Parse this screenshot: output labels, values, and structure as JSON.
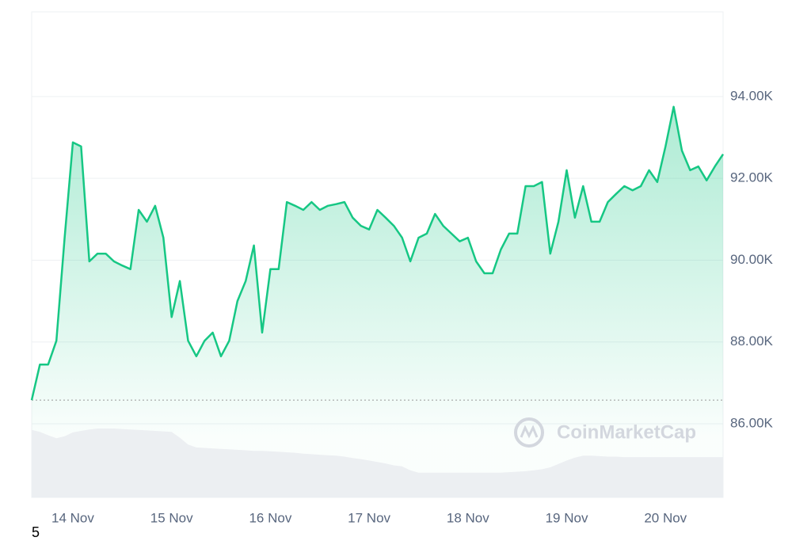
{
  "chart_data": {
    "type": "line",
    "categories": [
      null,
      null,
      null,
      null,
      null,
      "14 Nov",
      null,
      null,
      null,
      null,
      null,
      null,
      null,
      null,
      null,
      null,
      null,
      "15 Nov",
      null,
      null,
      null,
      null,
      null,
      null,
      null,
      null,
      null,
      null,
      null,
      "16 Nov",
      null,
      null,
      null,
      null,
      null,
      null,
      null,
      null,
      null,
      null,
      null,
      "17 Nov",
      null,
      null,
      null,
      null,
      null,
      null,
      null,
      null,
      null,
      null,
      null,
      "18 Nov",
      null,
      null,
      null,
      null,
      null,
      null,
      null,
      null,
      null,
      null,
      null,
      "19 Nov",
      null,
      null,
      null,
      null,
      null,
      null,
      null,
      null,
      null,
      null,
      null,
      "20 Nov",
      null,
      null,
      null,
      null,
      null,
      null,
      null
    ],
    "series": [
      {
        "color": "#16c784",
        "values": [
          86580,
          87450,
          87450,
          88030,
          90550,
          92880,
          92780,
          89970,
          90160,
          90160,
          89970,
          89870,
          89780,
          91230,
          90940,
          91330,
          90550,
          88610,
          89490,
          88030,
          87650,
          88030,
          88230,
          87650,
          88030,
          89000,
          89490,
          90360,
          88230,
          89780,
          89780,
          91420,
          91330,
          91230,
          91420,
          91230,
          91330,
          91370,
          91420,
          91040,
          90840,
          90750,
          91230,
          91040,
          90840,
          90550,
          89970,
          90550,
          90650,
          91130,
          90840,
          90650,
          90460,
          90550,
          89970,
          89680,
          89680,
          90260,
          90650,
          90650,
          91810,
          91810,
          91910,
          90160,
          90940,
          92200,
          91040,
          91810,
          90940,
          90940,
          91420,
          91620,
          91810,
          91710,
          91810,
          92200,
          91910,
          92780,
          93750,
          92680,
          92200,
          92290,
          91950,
          92290,
          92590
        ]
      },
      {
        "color": "#eceff2",
        "axis": "y2",
        "values": [
          13.9,
          13.5,
          12.8,
          12.2,
          12.6,
          13.4,
          13.7,
          14.0,
          14.2,
          14.2,
          14.2,
          14.1,
          14.0,
          13.9,
          13.8,
          13.7,
          13.6,
          13.5,
          12.3,
          10.9,
          10.3,
          10.2,
          10.1,
          10.0,
          9.9,
          9.8,
          9.7,
          9.6,
          9.6,
          9.5,
          9.4,
          9.3,
          9.2,
          9.0,
          8.9,
          8.8,
          8.7,
          8.6,
          8.4,
          8.1,
          7.9,
          7.6,
          7.3,
          7.0,
          6.6,
          6.4,
          5.6,
          5.1,
          5.1,
          5.1,
          5.1,
          5.1,
          5.1,
          5.1,
          5.1,
          5.1,
          5.1,
          5.1,
          5.2,
          5.3,
          5.4,
          5.6,
          5.8,
          6.2,
          6.9,
          7.6,
          8.2,
          8.6,
          8.6,
          8.5,
          8.4,
          8.4,
          8.3,
          8.3,
          8.3,
          8.3,
          8.3,
          8.3,
          8.3,
          8.3,
          8.3,
          8.3,
          8.3,
          8.3,
          8.3
        ]
      }
    ],
    "ylim": [
      84200,
      96070
    ],
    "yticks": [
      {
        "value": 86000,
        "label": "86.00K"
      },
      {
        "value": 88000,
        "label": "88.00K"
      },
      {
        "value": 90000,
        "label": "90.00K"
      },
      {
        "value": 92000,
        "label": "92.00K"
      },
      {
        "value": 94000,
        "label": "94.00K"
      }
    ],
    "y2lim": [
      0,
      100
    ],
    "grid": true,
    "watermark": "CoinMarketCap",
    "footnote": "5"
  }
}
